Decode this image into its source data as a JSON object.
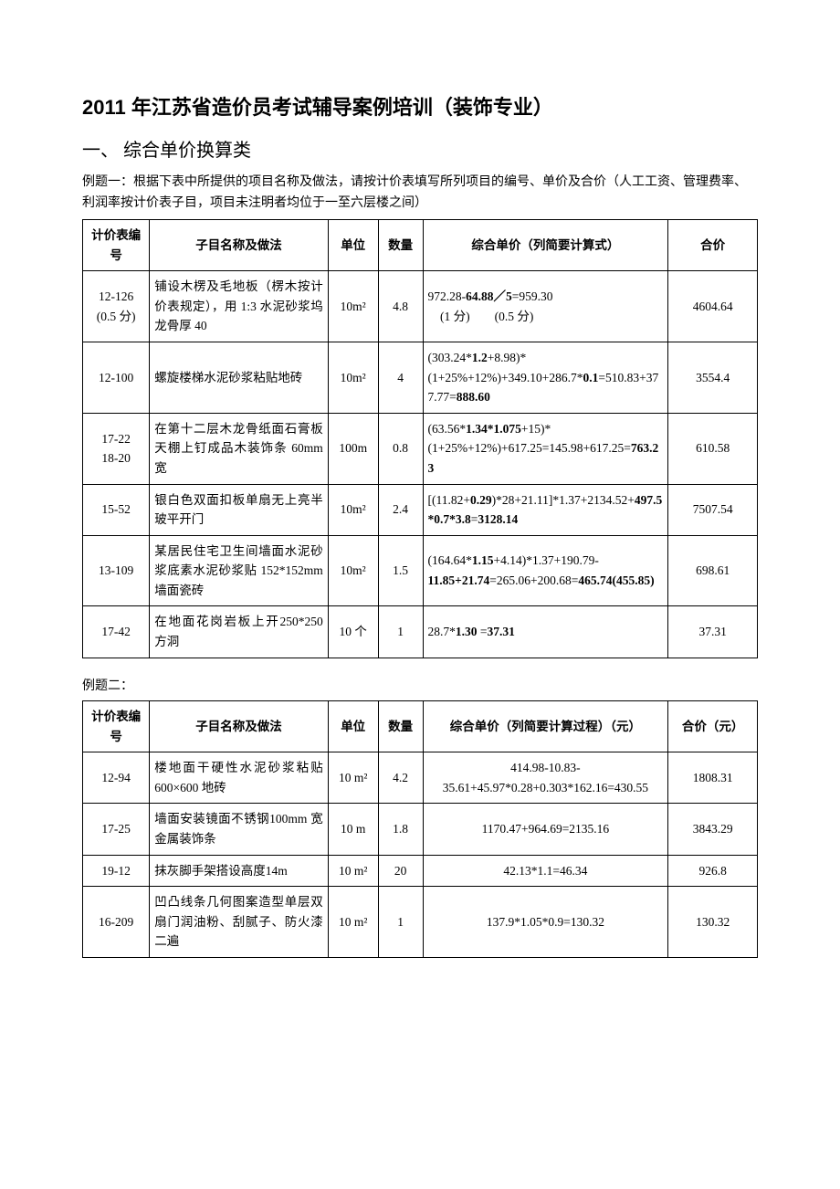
{
  "title": "2011 年江苏省造价员考试辅导案例培训（装饰专业）",
  "section1": "一、 综合单价换算类",
  "example1_intro": "例题一：根据下表中所提供的项目名称及做法，请按计价表填写所列项目的编号、单价及合价（人工工资、管理费率、利润率按计价表子目，项目未注明者均位于一至六层楼之间）",
  "table1": {
    "headers": {
      "id": "计价表编号",
      "name": "子目名称及做法",
      "unit": "单位",
      "qty": "数量",
      "calc": "综合单价（列简要计算式）",
      "total": "合价"
    },
    "rows": [
      {
        "id": "12-126\n(0.5 分)",
        "name": "铺设木楞及毛地板（楞木按计价表规定），用 1:3 水泥砂浆坞龙骨厚 40",
        "unit": "10m²",
        "qty": "4.8",
        "calc_html": "972.28-<b>64.88／5</b>=959.30<br>　(1 分)　　(0.5 分)",
        "total": "4604.64"
      },
      {
        "id": "12-100",
        "name": "螺旋楼梯水泥砂浆粘贴地砖",
        "unit": "10m²",
        "qty": "4",
        "calc_html": "(303.24*<b>1.2</b>+8.98)*(1+25%+12%)+349.10+286.7*<b>0.1</b>=510.83+377.77=<b>888.60</b>",
        "total": "3554.4"
      },
      {
        "id": "17-22\n18-20",
        "name": "在第十二层木龙骨纸面石膏板天棚上钉成品木装饰条 60mm 宽",
        "unit": "100m",
        "qty": "0.8",
        "calc_html": "(63.56*<b>1.34*1.075</b>+15)*(1+25%+12%)+617.25=145.98+617.25=<b>763.23</b>",
        "total": "610.58"
      },
      {
        "id": "15-52",
        "name": "银白色双面扣板单扇无上亮半玻平开门",
        "unit": "10m²",
        "qty": "2.4",
        "calc_html": "[(11.82+<b>0.29</b>)*28+21.11]*1.37+2134.52+<b>497.5*0.7*3.8</b>=<b>3128.14</b>",
        "total": "7507.54"
      },
      {
        "id": "13-109",
        "name": "某居民住宅卫生间墙面水泥砂浆底素水泥砂浆贴 152*152mm 墙面瓷砖",
        "unit": "10m²",
        "qty": "1.5",
        "calc_html": "(164.64*<b>1.15</b>+4.14)*1.37+190.79-<b>11.85+21.74</b>=265.06+200.68=<b>465.74(455.85)</b>",
        "total": "698.61"
      },
      {
        "id": "17-42",
        "name": "在地面花岗岩板上开250*250 方洞",
        "unit": "10 个",
        "qty": "1",
        "calc_html": "28.7*<b>1.30</b> =<b>37.31</b>",
        "total": "37.31"
      }
    ]
  },
  "example2_label": "例题二：",
  "table2": {
    "headers": {
      "id": "计价表编号",
      "name": "子目名称及做法",
      "unit": "单位",
      "qty": "数量",
      "calc": "综合单价（列简要计算过程）（元）",
      "total": "合价（元）"
    },
    "rows": [
      {
        "id": "12-94",
        "name": "楼地面干硬性水泥砂浆粘贴 600×600 地砖",
        "unit": "10 m²",
        "qty": "4.2",
        "calc": "414.98-10.83-35.61+45.97*0.28+0.303*162.16=430.55",
        "total": "1808.31"
      },
      {
        "id": "17-25",
        "name": "墙面安装镜面不锈钢100mm 宽金属装饰条",
        "unit": "10 m",
        "qty": "1.8",
        "calc": "1170.47+964.69=2135.16",
        "total": "3843.29"
      },
      {
        "id": "19-12",
        "name": "抹灰脚手架搭设高度14m",
        "unit": "10 m²",
        "qty": "20",
        "calc": "42.13*1.1=46.34",
        "total": "926.8"
      },
      {
        "id": "16-209",
        "name": "凹凸线条几何图案造型单层双扇门润油粉、刮腻子、防火漆二遍",
        "unit": "10 m²",
        "qty": "1",
        "calc": "137.9*1.05*0.9=130.32",
        "total": "130.32"
      }
    ]
  }
}
